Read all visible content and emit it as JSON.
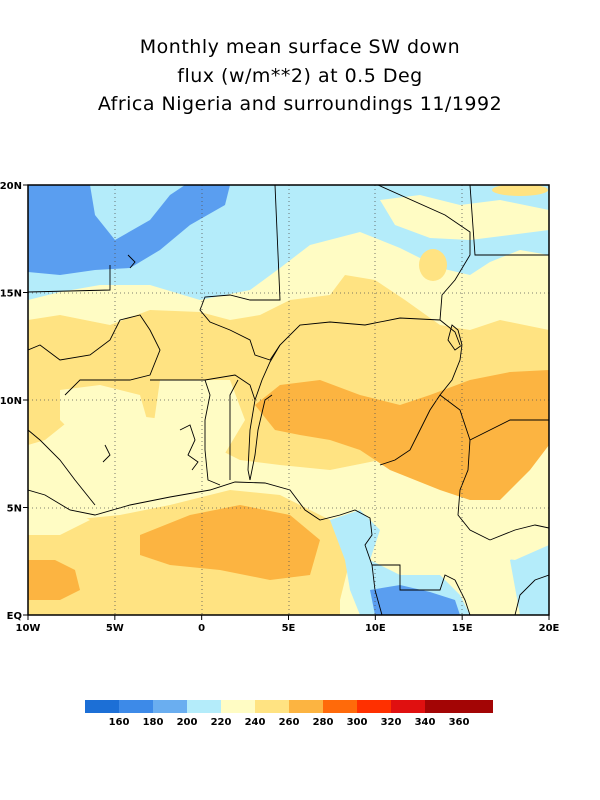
{
  "title": {
    "line1": "Monthly mean surface SW down",
    "line2": "flux (w/m**2) at 0.5 Deg",
    "line3": "Africa Nigeria and surroundings 11/1992"
  },
  "map": {
    "x_ticks": [
      "10W",
      "5W",
      "0",
      "5E",
      "10E",
      "15E",
      "20E"
    ],
    "y_ticks": [
      "EQ",
      "5N",
      "10N",
      "15N",
      "20N"
    ],
    "lon_range": [
      -10,
      20
    ],
    "lat_range": [
      0,
      20
    ],
    "grid": true
  },
  "colorbar": {
    "labels": [
      "160",
      "180",
      "200",
      "220",
      "240",
      "260",
      "280",
      "300",
      "320",
      "340",
      "360"
    ],
    "colors": [
      "#1c6fd6",
      "#3d8ae8",
      "#6aaef0",
      "#b4ecfa",
      "#fffcc4",
      "#ffe382",
      "#fcb441",
      "#ff6a0a",
      "#ff3000",
      "#e01010",
      "#a30505"
    ]
  },
  "fill_colors": {
    "blue_dark": "#5a9ef0",
    "blue_light": "#b4ecfa",
    "yellow_pale": "#fffcc4",
    "yellow": "#ffe382",
    "orange": "#fcb441"
  }
}
